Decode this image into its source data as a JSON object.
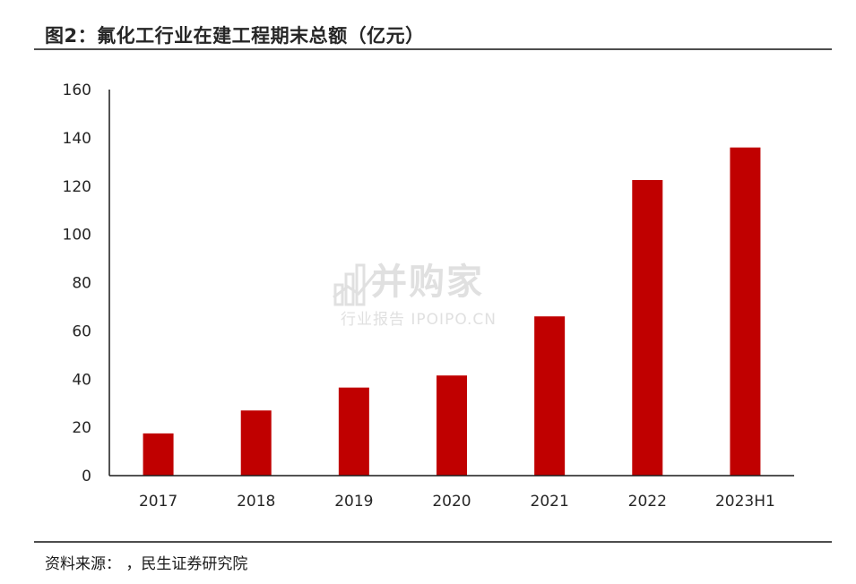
{
  "title": "图2：氟化工行业在建工程期末总额（亿元）",
  "source": "资料来源：        ，民生证券研究院",
  "watermark": {
    "main": "并购家",
    "sub": "行业报告 IPOIPO.CN"
  },
  "colors": {
    "bar": "#c00000",
    "axis": "#1a1a1a",
    "rule": "#4d4d4d"
  },
  "chart_data": {
    "type": "bar",
    "title": "图2：氟化工行业在建工程期末总额（亿元）",
    "categories": [
      "2017",
      "2018",
      "2019",
      "2020",
      "2021",
      "2022",
      "2023H1"
    ],
    "values": [
      17.5,
      27,
      36.5,
      41.5,
      66,
      122.5,
      136
    ],
    "xlabel": "",
    "ylabel": "",
    "ylim": [
      0,
      160
    ],
    "yticks": [
      0,
      20,
      40,
      60,
      80,
      100,
      120,
      140,
      160
    ],
    "grid": false,
    "legend": "none"
  }
}
